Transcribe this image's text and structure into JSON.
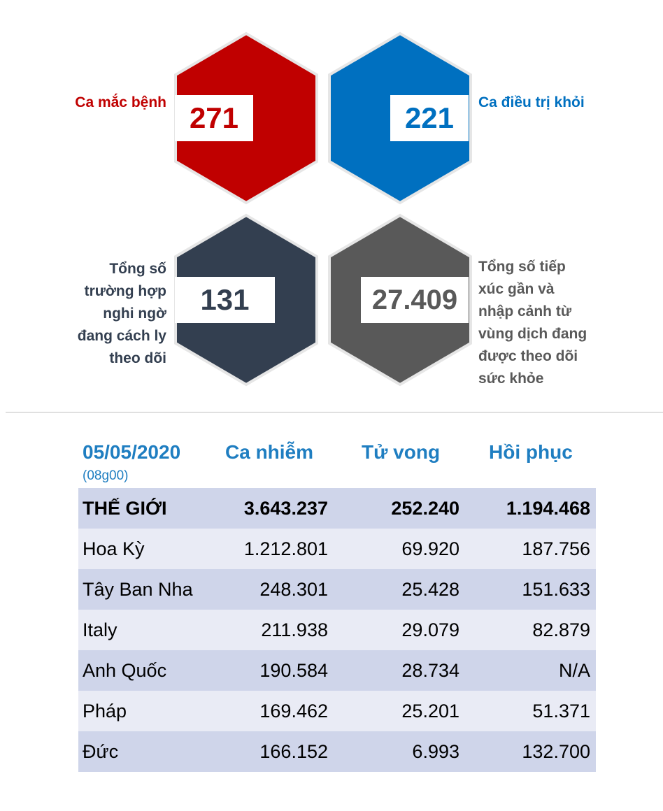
{
  "stats": [
    {
      "label": "Ca mắc bệnh",
      "value": "271",
      "color": "#c00000"
    },
    {
      "label": "Ca điều trị khỏi",
      "value": "221",
      "color": "#0070c0"
    },
    {
      "label": "Tổng số trường hợp nghi ngờ đang cách ly theo dõi",
      "value": "131",
      "color": "#333f50"
    },
    {
      "label": "Tổng số tiếp xúc gần và nhập cảnh từ vùng dịch đang được theo dõi sức khỏe",
      "value": "27.409",
      "color": "#595959"
    }
  ],
  "labels": {
    "cases": "Ca mắc bệnh",
    "recovered": "Ca điều trị khỏi",
    "suspected_lines": [
      "Tổng số",
      "trường hợp",
      "nghi ngờ",
      "đang cách ly",
      "theo dõi"
    ],
    "contacts_lines": [
      "Tổng số tiếp",
      "xúc gần và",
      "nhập cảnh từ",
      "vùng dịch đang",
      "được theo dõi",
      "sức khỏe"
    ]
  },
  "table": {
    "date": "05/05/2020",
    "time": "(08g00)",
    "headers": [
      "Ca nhiễm",
      "Tử vong",
      "Hồi phục"
    ],
    "rows": [
      [
        "THẾ GIỚI",
        "3.643.237",
        "252.240",
        "1.194.468"
      ],
      [
        "Hoa Kỳ",
        "1.212.801",
        "69.920",
        "187.756"
      ],
      [
        "Tây Ban Nha",
        "248.301",
        "25.428",
        "151.633"
      ],
      [
        "Italy",
        "211.938",
        "29.079",
        "82.879"
      ],
      [
        "Anh Quốc",
        "190.584",
        "28.734",
        "N/A"
      ],
      [
        "Pháp",
        "169.462",
        "25.201",
        "51.371"
      ],
      [
        "Đức",
        "166.152",
        "6.993",
        "132.700"
      ]
    ]
  }
}
